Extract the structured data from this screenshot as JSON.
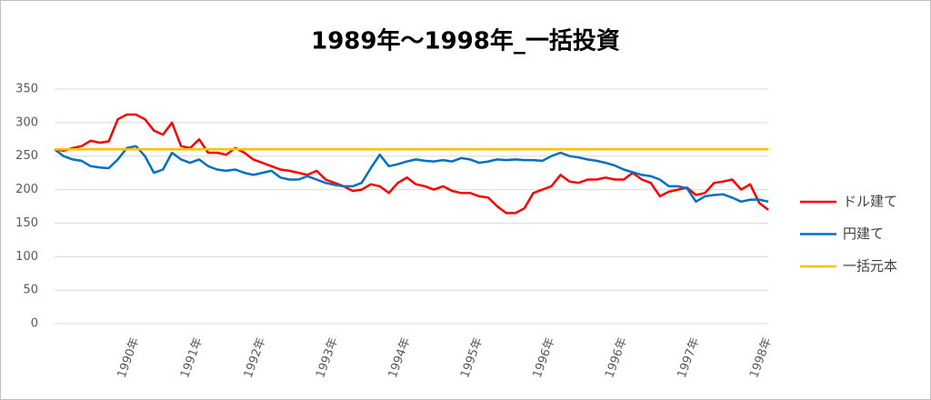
{
  "chart_data": {
    "type": "line",
    "title": "1989年～1998年_一括投資",
    "categories": [
      null,
      null,
      null,
      null,
      null,
      null,
      null,
      null,
      null,
      "1990年",
      null,
      null,
      null,
      null,
      null,
      null,
      "1991年",
      null,
      null,
      null,
      null,
      null,
      null,
      "1992年",
      null,
      null,
      null,
      null,
      null,
      null,
      null,
      "1993年",
      null,
      null,
      null,
      null,
      null,
      null,
      null,
      "1994年",
      null,
      null,
      null,
      null,
      null,
      null,
      null,
      "1995年",
      null,
      null,
      null,
      null,
      null,
      null,
      null,
      "1996年",
      null,
      null,
      null,
      null,
      null,
      null,
      null,
      "1996年",
      null,
      null,
      null,
      null,
      null,
      null,
      null,
      "1997年",
      null,
      null,
      null,
      null,
      null,
      null,
      null,
      "1998年"
    ],
    "series": [
      {
        "name": "ドル建て",
        "color": "#ff0000",
        "values": [
          260,
          258,
          262,
          265,
          273,
          270,
          272,
          305,
          312,
          312,
          305,
          288,
          282,
          300,
          265,
          262,
          275,
          255,
          255,
          252,
          262,
          255,
          245,
          240,
          235,
          230,
          228,
          225,
          222,
          228,
          215,
          210,
          205,
          198,
          200,
          208,
          205,
          195,
          210,
          218,
          208,
          205,
          200,
          205,
          198,
          195,
          195,
          190,
          188,
          175,
          165,
          165,
          172,
          195,
          200,
          205,
          222,
          212,
          210,
          215,
          215,
          218,
          215,
          215,
          225,
          215,
          210,
          190,
          197,
          200,
          203,
          192,
          195,
          210,
          212,
          215,
          200,
          208,
          180,
          170
        ]
      },
      {
        "name": "円建て",
        "color": "#0070c0",
        "values": [
          260,
          250,
          245,
          243,
          235,
          233,
          232,
          245,
          262,
          265,
          250,
          225,
          230,
          255,
          245,
          240,
          245,
          235,
          230,
          228,
          230,
          225,
          222,
          225,
          228,
          218,
          215,
          215,
          220,
          215,
          210,
          207,
          205,
          205,
          210,
          232,
          252,
          235,
          238,
          242,
          245,
          243,
          242,
          244,
          242,
          247,
          245,
          240,
          242,
          245,
          244,
          245,
          244,
          244,
          243,
          250,
          255,
          250,
          248,
          245,
          243,
          240,
          236,
          230,
          226,
          222,
          220,
          215,
          205,
          205,
          202,
          182,
          190,
          192,
          193,
          188,
          182,
          185,
          185,
          182
        ]
      },
      {
        "name": "一括元本",
        "color": "#ffc000",
        "values": [
          260,
          260,
          260,
          260,
          260,
          260,
          260,
          260,
          260,
          260,
          260,
          260,
          260,
          260,
          260,
          260,
          260,
          260,
          260,
          260,
          260,
          260,
          260,
          260,
          260,
          260,
          260,
          260,
          260,
          260,
          260,
          260,
          260,
          260,
          260,
          260,
          260,
          260,
          260,
          260,
          260,
          260,
          260,
          260,
          260,
          260,
          260,
          260,
          260,
          260,
          260,
          260,
          260,
          260,
          260,
          260,
          260,
          260,
          260,
          260,
          260,
          260,
          260,
          260,
          260,
          260,
          260,
          260,
          260,
          260,
          260,
          260,
          260,
          260,
          260,
          260,
          260,
          260,
          260,
          260
        ]
      }
    ],
    "ylim": [
      0,
      350
    ],
    "yticks": [
      0,
      50,
      100,
      150,
      200,
      250,
      300,
      350
    ],
    "grid": true,
    "legend": "right"
  }
}
